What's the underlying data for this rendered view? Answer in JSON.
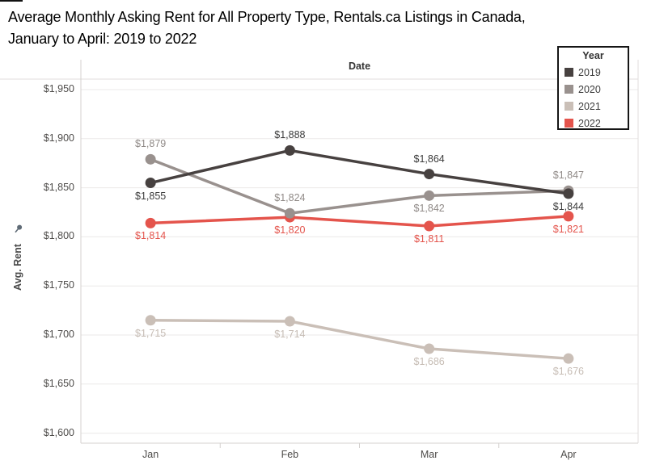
{
  "title": {
    "line1": "Average Monthly Asking Rent for All Property Type, Rentals.ca Listings in Canada,",
    "line2": "January to April: 2019 to 2022"
  },
  "chart_data": {
    "type": "line",
    "x_axis_label": "Date",
    "y_axis_label": "Avg. Rent",
    "categories": [
      "Jan",
      "Feb",
      "Mar",
      "Apr"
    ],
    "series": [
      {
        "name": "2019",
        "values": [
          1855,
          1888,
          1864,
          1844
        ],
        "color": "#474140",
        "label_color": "#3b3b3b",
        "label_side": [
          "below",
          "above",
          "above",
          "below"
        ]
      },
      {
        "name": "2020",
        "values": [
          1879,
          1824,
          1842,
          1847
        ],
        "color": "#99918e",
        "label_color": "#908a87",
        "label_side": [
          "above",
          "above",
          "below",
          "above"
        ]
      },
      {
        "name": "2021",
        "values": [
          1715,
          1714,
          1686,
          1676
        ],
        "color": "#cabfb7",
        "label_color": "#c6bcb4",
        "label_side": [
          "below",
          "below",
          "below",
          "below"
        ]
      },
      {
        "name": "2022",
        "values": [
          1814,
          1820,
          1811,
          1821
        ],
        "color": "#e4544c",
        "label_color": "#e4544c",
        "label_side": [
          "below",
          "below",
          "below",
          "below"
        ]
      }
    ],
    "draw_order": [
      "2021",
      "2022",
      "2020",
      "2019"
    ],
    "y_ticks": [
      1600,
      1650,
      1700,
      1750,
      1800,
      1850,
      1900,
      1950
    ],
    "ylim": [
      1590,
      1960
    ],
    "value_prefix": "$",
    "grid": "horizontal",
    "legend": {
      "title": "Year",
      "position": "top-right",
      "entries": [
        "2019",
        "2020",
        "2021",
        "2022"
      ]
    },
    "icons": {
      "axis_pin": "pin-icon"
    }
  }
}
